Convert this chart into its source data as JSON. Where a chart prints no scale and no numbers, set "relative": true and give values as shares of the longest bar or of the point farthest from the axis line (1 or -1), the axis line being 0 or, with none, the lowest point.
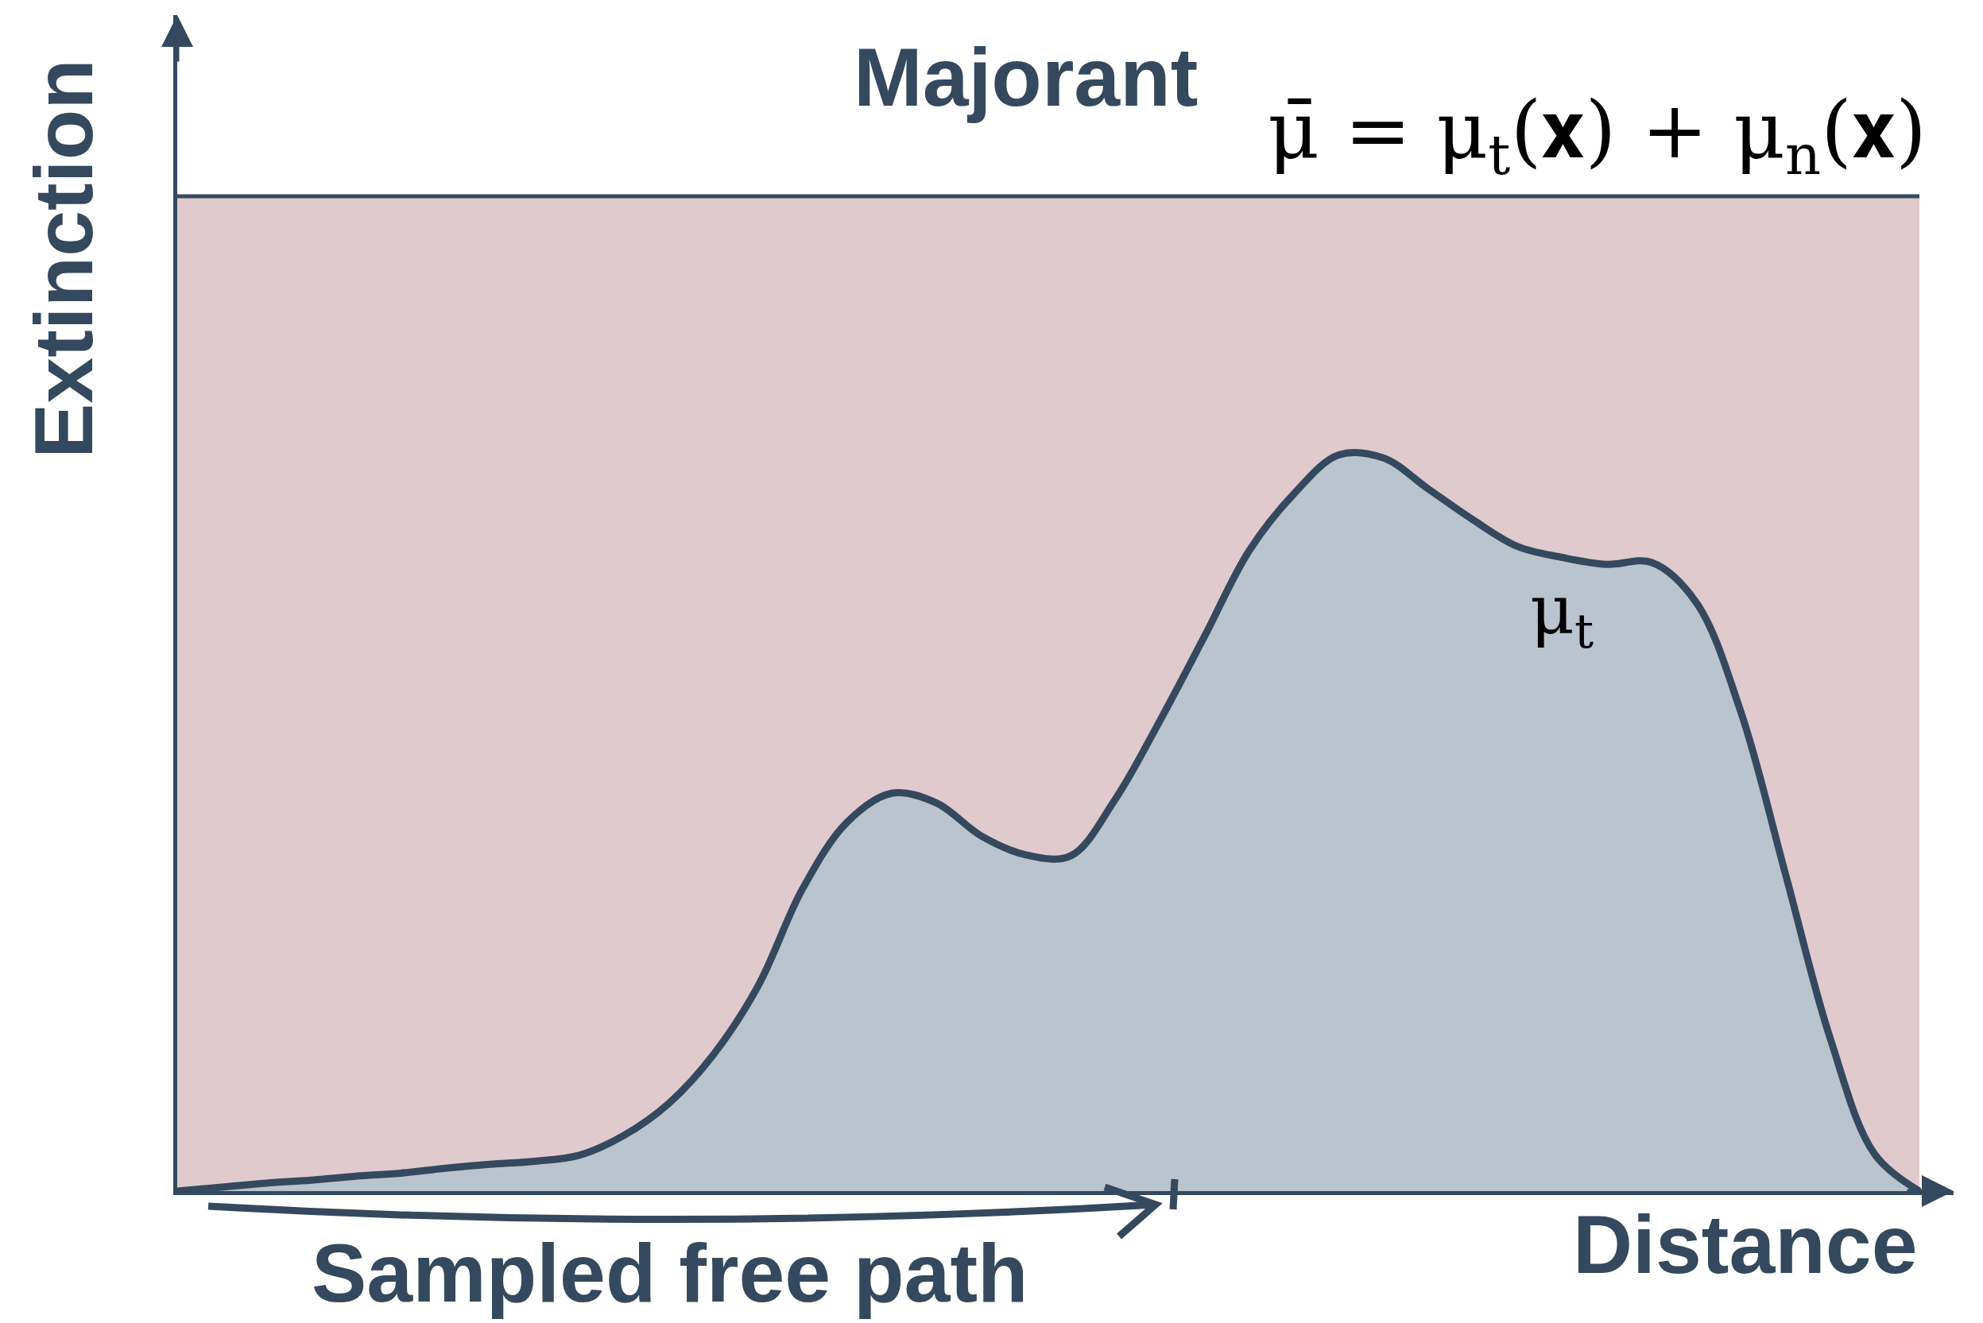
{
  "chart_data": {
    "type": "area",
    "relative": true,
    "xlabel": "Distance",
    "ylabel": "Extinction",
    "categories": [
      null,
      null,
      null,
      null,
      null,
      null,
      null,
      null,
      null,
      null,
      null,
      null,
      null,
      null,
      null,
      null,
      null,
      null,
      null,
      null,
      null,
      null,
      null,
      null,
      null,
      null,
      null,
      null,
      null,
      null,
      null,
      null,
      null,
      null,
      null,
      null,
      null,
      null,
      null,
      null
    ],
    "series": [
      {
        "name": "Majorant",
        "color": "#e0cace",
        "values": [
          1,
          1,
          1,
          1,
          1,
          1,
          1,
          1,
          1,
          1,
          1,
          1,
          1,
          1,
          1,
          1,
          1,
          1,
          1,
          1,
          1,
          1,
          1,
          1,
          1,
          1,
          1,
          1,
          1,
          1,
          1,
          1,
          1,
          1,
          1,
          1,
          1,
          1,
          1,
          1
        ]
      },
      {
        "name": "μ$_{t}$",
        "color": "#bac4ce",
        "values": [
          0,
          0.004,
          0.008,
          0.011,
          0.015,
          0.018,
          0.023,
          0.027,
          0.03,
          0.036,
          0.056,
          0.088,
          0.137,
          0.206,
          0.304,
          0.371,
          0.4,
          0.39,
          0.357,
          0.338,
          0.337,
          0.394,
          0.473,
          0.558,
          0.644,
          0.701,
          0.74,
          0.737,
          0.706,
          0.675,
          0.648,
          0.637,
          0.63,
          0.632,
          0.592,
          0.482,
          0.319,
          0.154,
          0.037,
          0
        ]
      }
    ],
    "annotations": [
      "μ̄ = μ$_{t}$(𝐱) + μ$_{n}$(𝐱)",
      "Sampled free path"
    ]
  }
}
